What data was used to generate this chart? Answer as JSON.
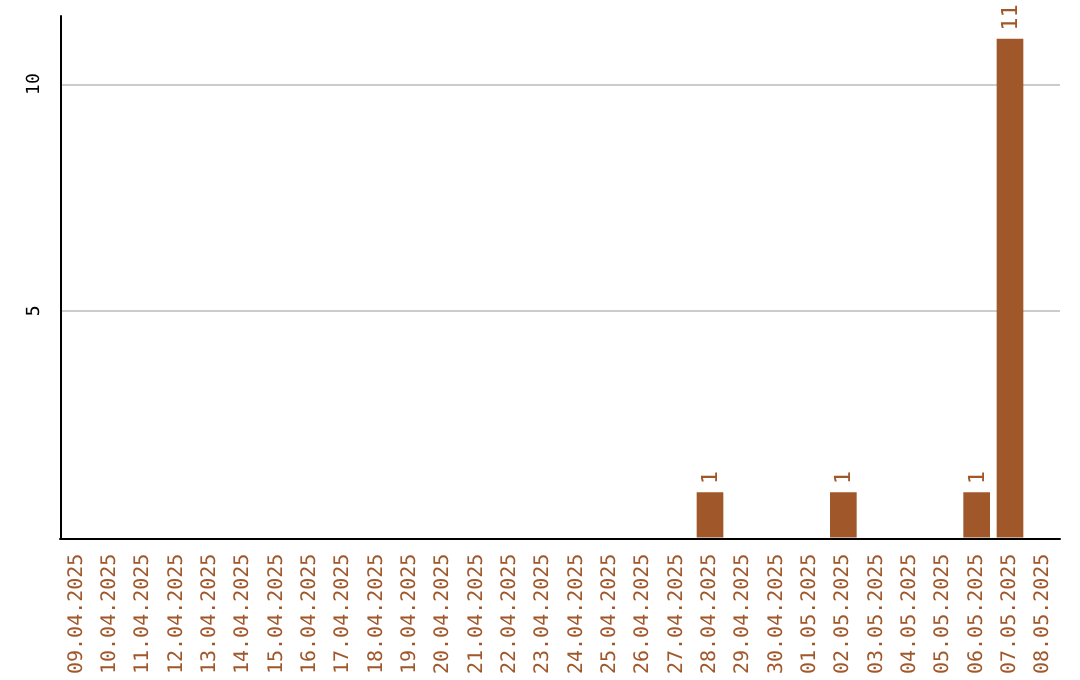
{
  "chart_data": {
    "type": "bar",
    "categories": [
      "09.04.2025",
      "10.04.2025",
      "11.04.2025",
      "12.04.2025",
      "13.04.2025",
      "14.04.2025",
      "15.04.2025",
      "16.04.2025",
      "17.04.2025",
      "18.04.2025",
      "19.04.2025",
      "20.04.2025",
      "21.04.2025",
      "22.04.2025",
      "23.04.2025",
      "24.04.2025",
      "25.04.2025",
      "26.04.2025",
      "27.04.2025",
      "28.04.2025",
      "29.04.2025",
      "30.04.2025",
      "01.05.2025",
      "02.05.2025",
      "03.05.2025",
      "04.05.2025",
      "05.05.2025",
      "06.05.2025",
      "07.05.2025",
      "08.05.2025"
    ],
    "values": [
      0,
      0,
      0,
      0,
      0,
      0,
      0,
      0,
      0,
      0,
      0,
      0,
      0,
      0,
      0,
      0,
      0,
      0,
      0,
      1,
      0,
      0,
      0,
      1,
      0,
      0,
      0,
      1,
      11,
      0
    ],
    "value_labels": [
      null,
      null,
      null,
      null,
      null,
      null,
      null,
      null,
      null,
      null,
      null,
      null,
      null,
      null,
      null,
      null,
      null,
      null,
      null,
      "1",
      null,
      null,
      null,
      "1",
      null,
      null,
      null,
      "1",
      "11",
      null
    ],
    "color": "#a0572a",
    "ylim": [
      0,
      11.5
    ],
    "yticks": [
      5,
      10
    ],
    "grid": "y"
  }
}
